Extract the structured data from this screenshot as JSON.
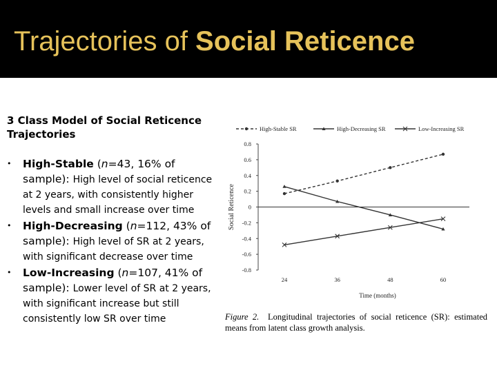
{
  "slide": {
    "title_prefix": "Trajectories of ",
    "title_bold": "Social Reticence",
    "heading": "3 Class Model of Social Reticence Trajectories",
    "bullets": [
      {
        "name": "High-Stable",
        "n": "n",
        "detail": "=43, 16% of sample):",
        "desc": "High level of social reticence at 2 years, with consistently higher levels and small increase over time"
      },
      {
        "name": "High-Decreasing",
        "n": "n",
        "detail": "=112, 43% of sample):",
        "desc": "High level of SR at 2 years, with significant decrease over time"
      },
      {
        "name": "Low-Increasing",
        "n": "n",
        "detail": "=107, 41% of sample):",
        "desc": "Lower level of SR at 2 years, with significant increase but still consistently low SR over time"
      }
    ],
    "caption_figure": "Figure 2.",
    "caption_text": "Longitudinal trajectories of social reticence (SR): estimated means from latent class growth analysis."
  },
  "chart_data": {
    "type": "line",
    "x": [
      24,
      36,
      48,
      60
    ],
    "xlabel": "Time (months)",
    "ylabel": "Social Reticence",
    "ylim": [
      -0.8,
      0.8
    ],
    "yticks": [
      0.8,
      0.6,
      0.4,
      0.2,
      0,
      -0.2,
      -0.4,
      -0.6,
      -0.8
    ],
    "yticklabels": [
      "0.8",
      "0.6",
      "0.4",
      "0.2",
      "0",
      "-0.2",
      "-0.4",
      "-0.6",
      "-0.8"
    ],
    "legend_position": "top",
    "series": [
      {
        "name": "High-Stable SR",
        "values": [
          0.17,
          0.33,
          0.5,
          0.67
        ],
        "marker": "dot",
        "style": "dashed"
      },
      {
        "name": "High-Decreasing SR",
        "values": [
          0.26,
          0.07,
          -0.1,
          -0.28
        ],
        "marker": "triangle",
        "style": "solid"
      },
      {
        "name": "Low-Increasing SR",
        "values": [
          -0.48,
          -0.37,
          -0.26,
          -0.15
        ],
        "marker": "x",
        "style": "solid"
      }
    ]
  }
}
